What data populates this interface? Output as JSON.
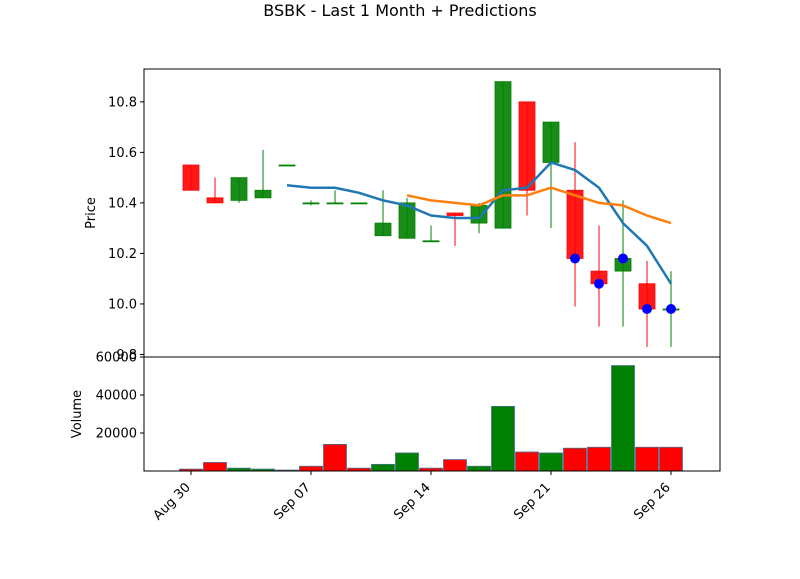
{
  "chart_data": {
    "type": "candlestick",
    "title": "BSBK - Last 1 Month + Predictions",
    "price_panel": {
      "ylabel": "Price",
      "ylim": [
        9.79,
        10.93
      ],
      "yticks": [
        9.8,
        10.0,
        10.2,
        10.4,
        10.6,
        10.8
      ],
      "ytick_labels": [
        "9.8",
        "10.0",
        "10.2",
        "10.4",
        "10.6",
        "10.8"
      ]
    },
    "volume_panel": {
      "ylabel": "Volume",
      "ylim": [
        0,
        60000
      ],
      "yticks": [
        20000,
        40000,
        60000
      ],
      "ytick_labels": [
        "20000",
        "40000",
        "60000"
      ]
    },
    "x_ticks": [
      {
        "index": 0,
        "label": "Aug 30"
      },
      {
        "index": 5,
        "label": "Sep 07"
      },
      {
        "index": 10,
        "label": "Sep 14"
      },
      {
        "index": 15,
        "label": "Sep 21"
      },
      {
        "index": 20,
        "label": "Sep 26"
      }
    ],
    "candles": [
      {
        "open": 10.55,
        "high": 10.55,
        "low": 10.45,
        "close": 10.45
      },
      {
        "open": 10.42,
        "high": 10.5,
        "low": 10.4,
        "close": 10.4
      },
      {
        "open": 10.41,
        "high": 10.5,
        "low": 10.4,
        "close": 10.5
      },
      {
        "open": 10.42,
        "high": 10.61,
        "low": 10.42,
        "close": 10.45
      },
      {
        "open": 10.55,
        "high": 10.55,
        "low": 10.55,
        "close": 10.55
      },
      {
        "open": 10.4,
        "high": 10.41,
        "low": 10.39,
        "close": 10.4
      },
      {
        "open": 10.4,
        "high": 10.45,
        "low": 10.4,
        "close": 10.4
      },
      {
        "open": 10.4,
        "high": 10.4,
        "low": 10.4,
        "close": 10.4
      },
      {
        "open": 10.27,
        "high": 10.45,
        "low": 10.27,
        "close": 10.32
      },
      {
        "open": 10.26,
        "high": 10.42,
        "low": 10.26,
        "close": 10.4
      },
      {
        "open": 10.25,
        "high": 10.31,
        "low": 10.25,
        "close": 10.25
      },
      {
        "open": 10.36,
        "high": 10.36,
        "low": 10.23,
        "close": 10.35
      },
      {
        "open": 10.32,
        "high": 10.4,
        "low": 10.28,
        "close": 10.39
      },
      {
        "open": 10.3,
        "high": 10.88,
        "low": 10.3,
        "close": 10.88
      },
      {
        "open": 10.8,
        "high": 10.8,
        "low": 10.35,
        "close": 10.45
      },
      {
        "open": 10.56,
        "high": 10.72,
        "low": 10.3,
        "close": 10.72
      },
      {
        "open": 10.45,
        "high": 10.64,
        "low": 9.99,
        "close": 10.18
      },
      {
        "open": 10.13,
        "high": 10.31,
        "low": 9.91,
        "close": 10.08
      },
      {
        "open": 10.13,
        "high": 10.41,
        "low": 9.91,
        "close": 10.18
      },
      {
        "open": 10.08,
        "high": 10.17,
        "low": 9.83,
        "close": 9.98
      },
      {
        "open": 9.98,
        "high": 10.13,
        "low": 9.83,
        "close": 9.98
      }
    ],
    "volume": [
      {
        "value": 1000,
        "color": "red"
      },
      {
        "value": 4500,
        "color": "red"
      },
      {
        "value": 1500,
        "color": "green"
      },
      {
        "value": 1000,
        "color": "green"
      },
      {
        "value": 500,
        "color": "red"
      },
      {
        "value": 2500,
        "color": "red"
      },
      {
        "value": 14000,
        "color": "red"
      },
      {
        "value": 1500,
        "color": "red"
      },
      {
        "value": 3500,
        "color": "green"
      },
      {
        "value": 9500,
        "color": "green"
      },
      {
        "value": 1500,
        "color": "red"
      },
      {
        "value": 6000,
        "color": "red"
      },
      {
        "value": 2500,
        "color": "green"
      },
      {
        "value": 34000,
        "color": "green"
      },
      {
        "value": 10000,
        "color": "red"
      },
      {
        "value": 9500,
        "color": "green"
      },
      {
        "value": 12000,
        "color": "red"
      },
      {
        "value": 12500,
        "color": "red"
      },
      {
        "value": 55500,
        "color": "green"
      },
      {
        "value": 12500,
        "color": "red"
      },
      {
        "value": 12500,
        "color": "red"
      }
    ],
    "ma_short": [
      {
        "x": 4,
        "y": 10.47
      },
      {
        "x": 5,
        "y": 10.46
      },
      {
        "x": 6,
        "y": 10.46
      },
      {
        "x": 7,
        "y": 10.44
      },
      {
        "x": 8,
        "y": 10.41
      },
      {
        "x": 9,
        "y": 10.39
      },
      {
        "x": 10,
        "y": 10.35
      },
      {
        "x": 11,
        "y": 10.34
      },
      {
        "x": 12,
        "y": 10.34
      },
      {
        "x": 13,
        "y": 10.45
      },
      {
        "x": 14,
        "y": 10.46
      },
      {
        "x": 15,
        "y": 10.56
      },
      {
        "x": 16,
        "y": 10.53
      },
      {
        "x": 17,
        "y": 10.46
      },
      {
        "x": 18,
        "y": 10.32
      },
      {
        "x": 19,
        "y": 10.23
      },
      {
        "x": 20,
        "y": 10.08
      }
    ],
    "ma_long": [
      {
        "x": 9,
        "y": 10.43
      },
      {
        "x": 10,
        "y": 10.41
      },
      {
        "x": 11,
        "y": 10.4
      },
      {
        "x": 12,
        "y": 10.39
      },
      {
        "x": 13,
        "y": 10.43
      },
      {
        "x": 14,
        "y": 10.43
      },
      {
        "x": 15,
        "y": 10.46
      },
      {
        "x": 16,
        "y": 10.43
      },
      {
        "x": 17,
        "y": 10.4
      },
      {
        "x": 18,
        "y": 10.39
      },
      {
        "x": 19,
        "y": 10.35
      },
      {
        "x": 20,
        "y": 10.32
      }
    ],
    "predictions": [
      {
        "x": 16,
        "y": 10.18
      },
      {
        "x": 17,
        "y": 10.08
      },
      {
        "x": 18,
        "y": 10.18
      },
      {
        "x": 19,
        "y": 9.98
      },
      {
        "x": 20,
        "y": 9.98
      }
    ],
    "colors": {
      "up": "#008000",
      "down": "#ff0000",
      "ma_short": "#1f77b4",
      "ma_long": "#ff7f0e",
      "prediction": "#0000ff"
    }
  }
}
